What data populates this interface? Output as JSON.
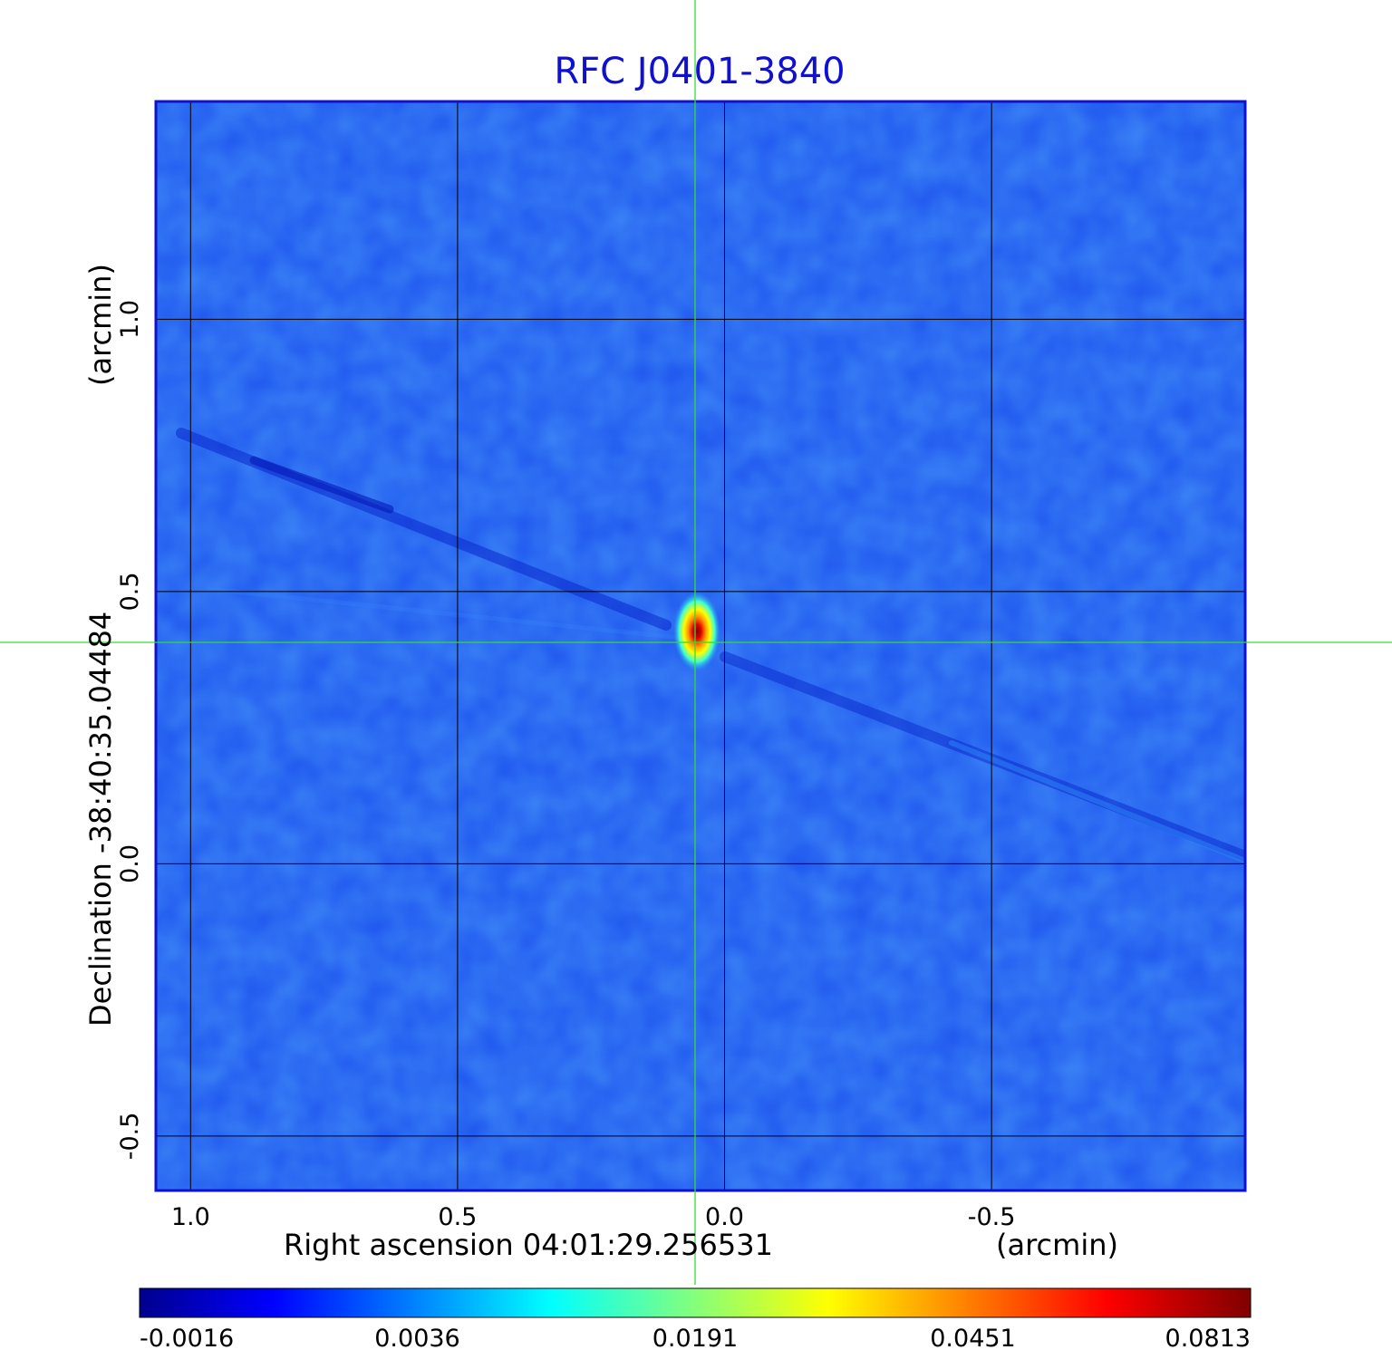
{
  "chart_data": {
    "type": "heatmap",
    "title": "RFC J0401-3840",
    "xlabel": "Right ascension  04:01:29.256531",
    "xunit": "(arcmin)",
    "ylabel": "Declination  -38:40:35.04484",
    "yunit": "(arcmin)",
    "x_axis_reversed": true,
    "xlim": [
      1.065,
      -0.975
    ],
    "ylim": [
      -0.6,
      1.4
    ],
    "x_ticks": [
      {
        "value": 1.0,
        "label": "1.0"
      },
      {
        "value": 0.5,
        "label": "0.5"
      },
      {
        "value": 0.0,
        "label": "0.0"
      },
      {
        "value": -0.5,
        "label": "-0.5"
      }
    ],
    "y_ticks": [
      {
        "value": 1.0,
        "label": "1.0"
      },
      {
        "value": 0.5,
        "label": "0.5"
      },
      {
        "value": 0.0,
        "label": "0.0"
      },
      {
        "value": -0.5,
        "label": "-0.5"
      }
    ],
    "grid": true,
    "crosshair": {
      "x": 0.055,
      "y": 0.415
    },
    "source_peak": {
      "x": 0.05,
      "y": 0.425,
      "value": 0.0813
    },
    "colorbar": {
      "position": "bottom",
      "colormap": "jet",
      "ticks": [
        "-0.0016",
        "0.0036",
        "0.0191",
        "0.0451",
        "0.0813"
      ],
      "colors": [
        "#00008f",
        "#0000ff",
        "#00ffff",
        "#ffff00",
        "#ff0000",
        "#800000"
      ]
    },
    "colors": {
      "title": "#1010d0",
      "frame": "#1010d0",
      "crosshair": "#33dd33",
      "grid": "#000000",
      "background": "#1e55ee"
    }
  }
}
